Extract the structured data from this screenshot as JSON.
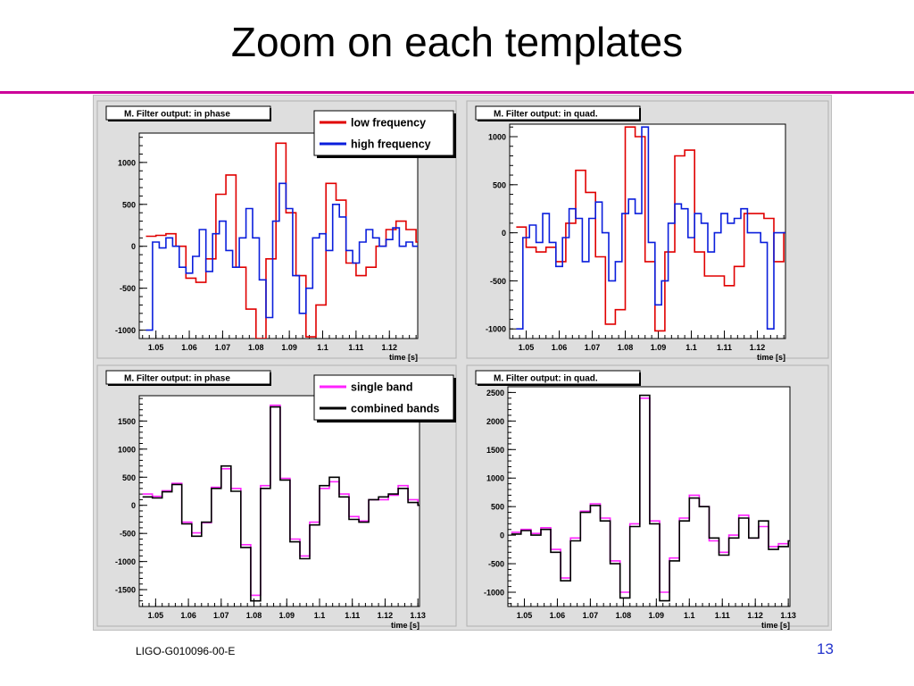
{
  "slide": {
    "title": "Zoom on each templates",
    "footer_doc_id": "LIGO-G010096-00-E",
    "page_number": "13",
    "accent_rule_color": "#cc0099"
  },
  "chart_data": [
    {
      "type": "line",
      "step": true,
      "title": "M. Filter output: in phase",
      "xlabel": "time [s]",
      "ylabel": "",
      "xlim": [
        1.045,
        1.1285
      ],
      "ylim": [
        -1100,
        1350
      ],
      "xticks": [
        1.05,
        1.06,
        1.07,
        1.08,
        1.09,
        1.1,
        1.11,
        1.12
      ],
      "xtick_labels": [
        "1.05",
        "1.06",
        "1.07",
        "1.08",
        "1.09",
        "1.1",
        "1.11",
        "1.12"
      ],
      "yticks": [
        -1000,
        -500,
        0,
        500,
        1000
      ],
      "legend_position": "top-right",
      "series": [
        {
          "name": "low frequency",
          "color": "#e00000",
          "x": [
            1.047,
            1.05,
            1.053,
            1.056,
            1.059,
            1.062,
            1.065,
            1.068,
            1.071,
            1.074,
            1.077,
            1.08,
            1.083,
            1.086,
            1.089,
            1.092,
            1.095,
            1.098,
            1.101,
            1.104,
            1.107,
            1.11,
            1.113,
            1.116,
            1.119,
            1.122,
            1.125,
            1.128
          ],
          "y": [
            120,
            130,
            150,
            0,
            -380,
            -430,
            -150,
            620,
            850,
            -250,
            -750,
            -1100,
            -150,
            1230,
            400,
            -350,
            -1080,
            -700,
            750,
            550,
            -200,
            -350,
            -250,
            0,
            200,
            300,
            200,
            50
          ]
        },
        {
          "name": "high frequency",
          "color": "#0a1edc",
          "x": [
            1.047,
            1.049,
            1.051,
            1.053,
            1.055,
            1.057,
            1.059,
            1.061,
            1.063,
            1.065,
            1.067,
            1.069,
            1.071,
            1.073,
            1.075,
            1.077,
            1.079,
            1.081,
            1.083,
            1.085,
            1.087,
            1.089,
            1.091,
            1.093,
            1.095,
            1.097,
            1.099,
            1.101,
            1.103,
            1.105,
            1.107,
            1.109,
            1.111,
            1.113,
            1.115,
            1.117,
            1.119,
            1.121,
            1.123,
            1.125,
            1.127
          ],
          "y": [
            -1000,
            50,
            -20,
            100,
            0,
            -250,
            -320,
            -120,
            200,
            -300,
            150,
            300,
            -50,
            -250,
            100,
            450,
            100,
            -400,
            -850,
            300,
            750,
            450,
            -350,
            -800,
            -500,
            100,
            150,
            -50,
            500,
            350,
            -50,
            -200,
            50,
            200,
            100,
            0,
            80,
            220,
            0,
            50,
            0
          ]
        }
      ]
    },
    {
      "type": "line",
      "step": true,
      "title": "M. Filter output: in quad.",
      "xlabel": "time [s]",
      "ylabel": "",
      "xlim": [
        1.045,
        1.1285
      ],
      "ylim": [
        -1100,
        1130
      ],
      "xticks": [
        1.05,
        1.06,
        1.07,
        1.08,
        1.09,
        1.1,
        1.11,
        1.12
      ],
      "xtick_labels": [
        "1.05",
        "1.06",
        "1.07",
        "1.08",
        "1.09",
        "1.1",
        "1.11",
        "1.12"
      ],
      "yticks": [
        -1000,
        -500,
        0,
        500,
        1000
      ],
      "series": [
        {
          "name": "low frequency",
          "color": "#e00000",
          "x": [
            1.047,
            1.05,
            1.053,
            1.056,
            1.059,
            1.062,
            1.065,
            1.068,
            1.071,
            1.074,
            1.077,
            1.08,
            1.083,
            1.086,
            1.089,
            1.092,
            1.095,
            1.098,
            1.101,
            1.104,
            1.107,
            1.11,
            1.113,
            1.116,
            1.119,
            1.122,
            1.125,
            1.128
          ],
          "y": [
            60,
            -150,
            -200,
            -150,
            -300,
            100,
            650,
            420,
            -250,
            -950,
            -800,
            1100,
            1000,
            -300,
            -1020,
            -200,
            800,
            860,
            -200,
            -450,
            -450,
            -550,
            -350,
            200,
            200,
            150,
            -300,
            0
          ]
        },
        {
          "name": "high frequency",
          "color": "#0a1edc",
          "x": [
            1.047,
            1.049,
            1.051,
            1.053,
            1.055,
            1.057,
            1.059,
            1.061,
            1.063,
            1.065,
            1.067,
            1.069,
            1.071,
            1.073,
            1.075,
            1.077,
            1.079,
            1.081,
            1.083,
            1.085,
            1.087,
            1.089,
            1.091,
            1.093,
            1.095,
            1.097,
            1.099,
            1.101,
            1.103,
            1.105,
            1.107,
            1.109,
            1.111,
            1.113,
            1.115,
            1.117,
            1.119,
            1.121,
            1.123,
            1.125,
            1.127
          ],
          "y": [
            -1000,
            -50,
            80,
            -100,
            200,
            -100,
            -350,
            -50,
            250,
            150,
            -300,
            150,
            320,
            0,
            -500,
            -300,
            200,
            350,
            200,
            1100,
            -100,
            -750,
            -500,
            100,
            300,
            250,
            -50,
            200,
            100,
            -200,
            0,
            200,
            100,
            150,
            250,
            0,
            0,
            -100,
            -1000,
            0,
            0
          ]
        }
      ]
    },
    {
      "type": "line",
      "step": true,
      "title": "M. Filter output: in phase",
      "xlabel": "time [s]",
      "ylabel": "",
      "xlim": [
        1.045,
        1.1305
      ],
      "ylim": [
        -1800,
        1950
      ],
      "xticks": [
        1.05,
        1.06,
        1.07,
        1.08,
        1.09,
        1.1,
        1.11,
        1.12,
        1.13
      ],
      "xtick_labels": [
        "1.05",
        "1.06",
        "1.07",
        "1.08",
        "1.09",
        "1.1",
        "1.11",
        "1.12",
        "1.13"
      ],
      "yticks": [
        -1500,
        -1000,
        -500,
        0,
        500,
        1000,
        1500
      ],
      "legend_position": "top-right",
      "series": [
        {
          "name": "single band",
          "color": "#ff22ff",
          "x": [
            1.046,
            1.049,
            1.052,
            1.055,
            1.058,
            1.061,
            1.064,
            1.067,
            1.07,
            1.073,
            1.076,
            1.079,
            1.082,
            1.085,
            1.088,
            1.091,
            1.094,
            1.097,
            1.1,
            1.103,
            1.106,
            1.109,
            1.112,
            1.115,
            1.118,
            1.121,
            1.124,
            1.127,
            1.13
          ],
          "y": [
            200,
            160,
            260,
            390,
            -300,
            -490,
            -310,
            320,
            650,
            300,
            -700,
            -1600,
            350,
            1780,
            480,
            -600,
            -900,
            -300,
            300,
            420,
            200,
            -200,
            -280,
            100,
            100,
            180,
            350,
            100,
            0
          ]
        },
        {
          "name": "combined bands",
          "color": "#000000",
          "x": [
            1.046,
            1.049,
            1.052,
            1.055,
            1.058,
            1.061,
            1.064,
            1.067,
            1.07,
            1.073,
            1.076,
            1.079,
            1.082,
            1.085,
            1.088,
            1.091,
            1.094,
            1.097,
            1.1,
            1.103,
            1.106,
            1.109,
            1.112,
            1.115,
            1.118,
            1.121,
            1.124,
            1.127,
            1.13
          ],
          "y": [
            150,
            130,
            240,
            370,
            -330,
            -550,
            -300,
            300,
            700,
            250,
            -750,
            -1700,
            300,
            1750,
            450,
            -650,
            -950,
            -350,
            350,
            500,
            150,
            -250,
            -300,
            100,
            150,
            200,
            300,
            50,
            0
          ]
        }
      ]
    },
    {
      "type": "line",
      "step": true,
      "title": "M. Filter output: in quad.",
      "xlabel": "time [s]",
      "ylabel": "",
      "xlim": [
        1.045,
        1.1305
      ],
      "ylim": [
        -1250,
        2600
      ],
      "xticks": [
        1.05,
        1.06,
        1.07,
        1.08,
        1.09,
        1.1,
        1.11,
        1.12,
        1.13
      ],
      "xtick_labels": [
        "1.05",
        "1.06",
        "1.07",
        "1.08",
        "1.09",
        "1.1",
        "1.11",
        "1.12",
        "1.13"
      ],
      "yticks": [
        -1000,
        -500,
        0,
        500,
        1000,
        1500,
        2000,
        2500
      ],
      "series": [
        {
          "name": "single band",
          "color": "#ff22ff",
          "x": [
            1.046,
            1.049,
            1.052,
            1.055,
            1.058,
            1.061,
            1.064,
            1.067,
            1.07,
            1.073,
            1.076,
            1.079,
            1.082,
            1.085,
            1.088,
            1.091,
            1.094,
            1.097,
            1.1,
            1.103,
            1.106,
            1.109,
            1.112,
            1.115,
            1.118,
            1.121,
            1.124,
            1.127,
            1.13
          ],
          "y": [
            50,
            100,
            30,
            130,
            -250,
            -750,
            -50,
            420,
            550,
            300,
            -450,
            -1000,
            200,
            2400,
            250,
            -1000,
            -400,
            300,
            700,
            500,
            -100,
            -300,
            0,
            350,
            -50,
            150,
            -200,
            -150,
            -100
          ]
        },
        {
          "name": "combined bands",
          "color": "#000000",
          "x": [
            1.046,
            1.049,
            1.052,
            1.055,
            1.058,
            1.061,
            1.064,
            1.067,
            1.07,
            1.073,
            1.076,
            1.079,
            1.082,
            1.085,
            1.088,
            1.091,
            1.094,
            1.097,
            1.1,
            1.103,
            1.106,
            1.109,
            1.112,
            1.115,
            1.118,
            1.121,
            1.124,
            1.127,
            1.13
          ],
          "y": [
            20,
            80,
            0,
            100,
            -300,
            -800,
            -100,
            400,
            520,
            250,
            -500,
            -1100,
            150,
            2450,
            200,
            -1150,
            -450,
            250,
            650,
            500,
            -50,
            -350,
            -50,
            300,
            -50,
            250,
            -250,
            -200,
            -100
          ]
        }
      ]
    }
  ]
}
